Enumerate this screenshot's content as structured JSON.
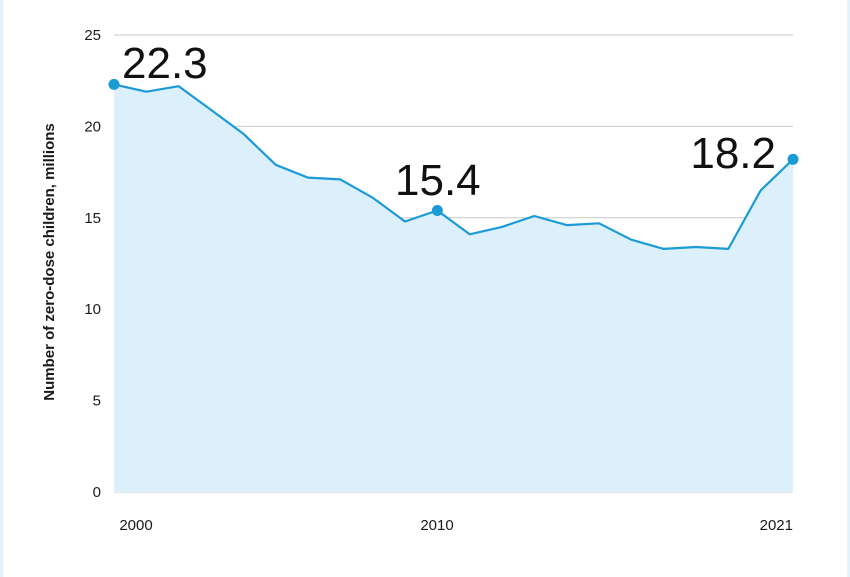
{
  "chart_data": {
    "type": "area",
    "title": "",
    "xlabel": "",
    "ylabel": "Number of zero-dose children, millions",
    "x": [
      2000,
      2001,
      2002,
      2003,
      2004,
      2005,
      2006,
      2007,
      2008,
      2009,
      2010,
      2011,
      2012,
      2013,
      2014,
      2015,
      2016,
      2017,
      2018,
      2019,
      2020,
      2021
    ],
    "series": [
      {
        "values": [
          22.3,
          21.9,
          22.2,
          20.9,
          19.6,
          17.9,
          17.2,
          17.1,
          16.1,
          14.8,
          15.4,
          14.1,
          14.5,
          15.1,
          14.6,
          14.7,
          13.8,
          13.3,
          13.4,
          13.3,
          16.5,
          18.2
        ]
      }
    ],
    "annotations": [
      {
        "x": 2000,
        "y": 22.3,
        "label": "22.3"
      },
      {
        "x": 2010,
        "y": 15.4,
        "label": "15.4"
      },
      {
        "x": 2021,
        "y": 18.2,
        "label": "18.2"
      }
    ],
    "x_tick_labels": [
      {
        "x": 2000,
        "label": "2000"
      },
      {
        "x": 2010,
        "label": "2010"
      },
      {
        "x": 2021,
        "label": "2021"
      }
    ],
    "y_ticks": [
      0,
      5,
      10,
      15,
      20,
      25
    ],
    "ylim": [
      0,
      25
    ],
    "xlim": [
      2000,
      2021
    ],
    "grid": true,
    "colors": {
      "line": "#1a9ad6",
      "fill": "#dbf0fa",
      "grid": "#c8c8c8"
    }
  }
}
